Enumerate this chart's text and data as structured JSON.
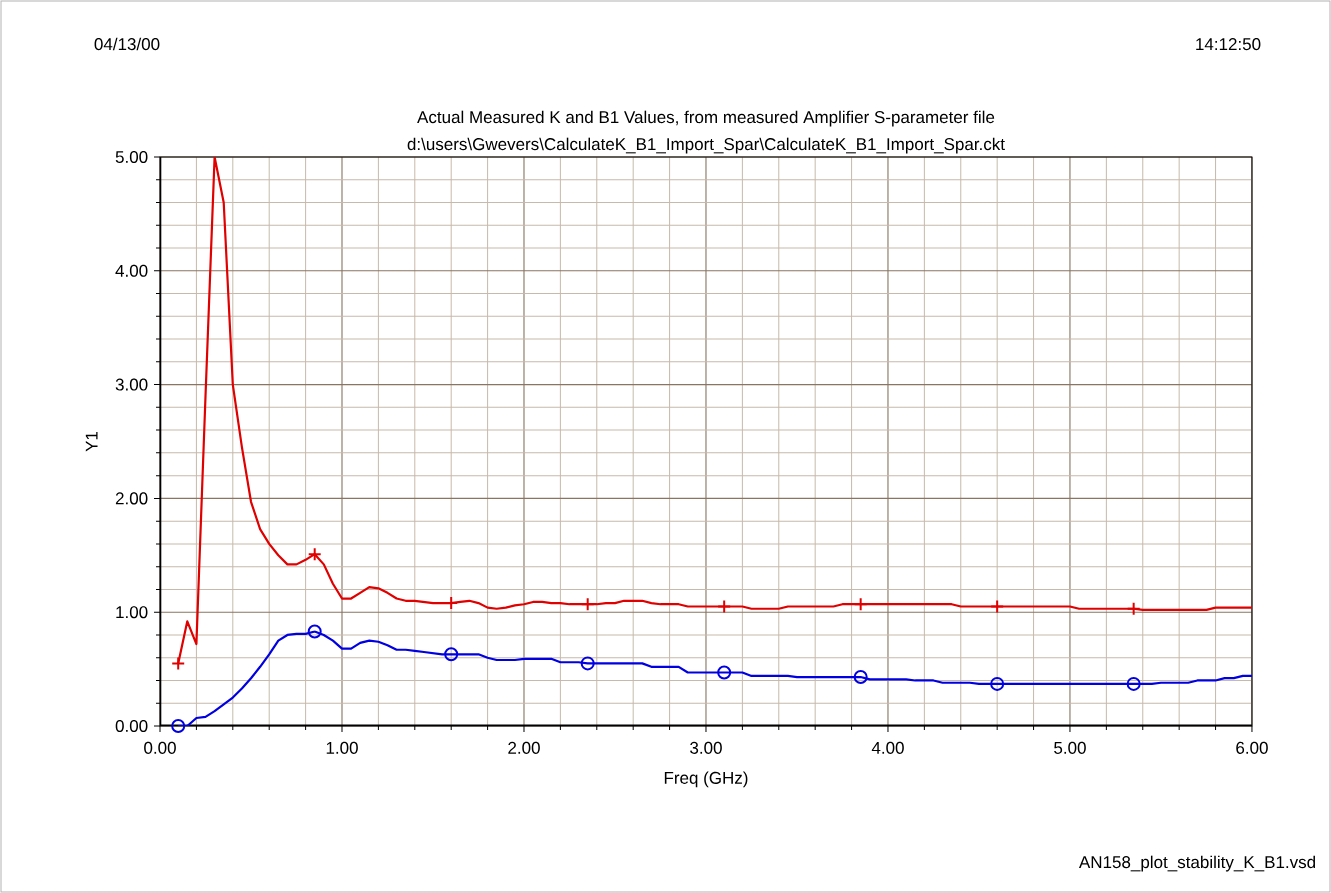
{
  "chart_data": {
    "type": "line",
    "title": "Actual Measured K and B1 Values, from measured Amplifier S-parameter file",
    "subtitle": "d:\\users\\Gwevers\\CalculateK_B1_Import_Spar\\CalculateK_B1_Import_Spar.ckt",
    "xlabel": "Freq (GHz)",
    "ylabel": "Y1",
    "annotations": [
      "04/13/00",
      "14:12:50",
      "AN158_plot_stability_K_B1.vsd"
    ],
    "x": [
      0.1,
      0.15,
      0.2,
      0.25,
      0.3,
      0.35,
      0.4,
      0.45,
      0.5,
      0.55,
      0.6,
      0.65,
      0.7,
      0.75,
      0.8,
      0.85,
      0.9,
      0.95,
      1.0,
      1.05,
      1.1,
      1.15,
      1.2,
      1.25,
      1.3,
      1.35,
      1.4,
      1.45,
      1.5,
      1.55,
      1.6,
      1.65,
      1.7,
      1.75,
      1.8,
      1.85,
      1.9,
      1.95,
      2.0,
      2.05,
      2.1,
      2.15,
      2.2,
      2.25,
      2.3,
      2.35,
      2.4,
      2.45,
      2.5,
      2.55,
      2.6,
      2.65,
      2.7,
      2.75,
      2.8,
      2.85,
      2.9,
      2.95,
      3.0,
      3.05,
      3.1,
      3.15,
      3.2,
      3.25,
      3.3,
      3.35,
      3.4,
      3.45,
      3.5,
      3.55,
      3.6,
      3.65,
      3.7,
      3.75,
      3.8,
      3.85,
      3.9,
      3.95,
      4.0,
      4.05,
      4.1,
      4.15,
      4.2,
      4.25,
      4.3,
      4.35,
      4.4,
      4.45,
      4.5,
      4.55,
      4.6,
      4.65,
      4.7,
      4.75,
      4.8,
      4.85,
      4.9,
      4.95,
      5.0,
      5.05,
      5.1,
      5.15,
      5.2,
      5.25,
      5.3,
      5.35,
      5.4,
      5.45,
      5.5,
      5.55,
      5.6,
      5.65,
      5.7,
      5.75,
      5.8,
      5.85,
      5.9,
      5.95,
      6.0
    ],
    "series": [
      {
        "color": "#e00000",
        "values": [
          0.55,
          0.92,
          0.72,
          2.9,
          5.0,
          4.6,
          3.0,
          2.45,
          1.97,
          1.73,
          1.6,
          1.5,
          1.42,
          1.42,
          1.46,
          1.51,
          1.42,
          1.25,
          1.12,
          1.12,
          1.17,
          1.22,
          1.21,
          1.17,
          1.12,
          1.1,
          1.1,
          1.09,
          1.08,
          1.08,
          1.08,
          1.09,
          1.1,
          1.08,
          1.04,
          1.03,
          1.04,
          1.06,
          1.07,
          1.09,
          1.09,
          1.08,
          1.08,
          1.07,
          1.07,
          1.07,
          1.07,
          1.08,
          1.08,
          1.1,
          1.1,
          1.1,
          1.08,
          1.07,
          1.07,
          1.07,
          1.05,
          1.05,
          1.05,
          1.05,
          1.05,
          1.05,
          1.05,
          1.03,
          1.03,
          1.03,
          1.03,
          1.05,
          1.05,
          1.05,
          1.05,
          1.05,
          1.05,
          1.07,
          1.07,
          1.07,
          1.07,
          1.07,
          1.07,
          1.07,
          1.07,
          1.07,
          1.07,
          1.07,
          1.07,
          1.07,
          1.05,
          1.05,
          1.05,
          1.05,
          1.05,
          1.05,
          1.05,
          1.05,
          1.05,
          1.05,
          1.05,
          1.05,
          1.05,
          1.03,
          1.03,
          1.03,
          1.03,
          1.03,
          1.03,
          1.03,
          1.02,
          1.02,
          1.02,
          1.02,
          1.02,
          1.02,
          1.02,
          1.02,
          1.04,
          1.04,
          1.04,
          1.04,
          1.04
        ]
      },
      {
        "color": "#0000e0",
        "values": [
          0.0,
          0.0,
          0.07,
          0.08,
          0.13,
          0.19,
          0.25,
          0.33,
          0.42,
          0.52,
          0.63,
          0.75,
          0.8,
          0.81,
          0.81,
          0.83,
          0.8,
          0.75,
          0.68,
          0.68,
          0.73,
          0.75,
          0.74,
          0.71,
          0.67,
          0.67,
          0.66,
          0.65,
          0.64,
          0.63,
          0.63,
          0.63,
          0.63,
          0.63,
          0.6,
          0.58,
          0.58,
          0.58,
          0.59,
          0.59,
          0.59,
          0.59,
          0.56,
          0.56,
          0.56,
          0.55,
          0.55,
          0.55,
          0.55,
          0.55,
          0.55,
          0.55,
          0.52,
          0.52,
          0.52,
          0.52,
          0.47,
          0.47,
          0.47,
          0.47,
          0.47,
          0.47,
          0.47,
          0.44,
          0.44,
          0.44,
          0.44,
          0.44,
          0.43,
          0.43,
          0.43,
          0.43,
          0.43,
          0.43,
          0.43,
          0.43,
          0.41,
          0.41,
          0.41,
          0.41,
          0.41,
          0.4,
          0.4,
          0.4,
          0.38,
          0.38,
          0.38,
          0.38,
          0.37,
          0.37,
          0.37,
          0.37,
          0.37,
          0.37,
          0.37,
          0.37,
          0.37,
          0.37,
          0.37,
          0.37,
          0.37,
          0.37,
          0.37,
          0.37,
          0.37,
          0.37,
          0.37,
          0.37,
          0.38,
          0.38,
          0.38,
          0.38,
          0.4,
          0.4,
          0.4,
          0.42,
          0.42,
          0.44,
          0.44
        ]
      },
      {
        "type": "scatter",
        "color": "#e00000",
        "marker": "cross",
        "x": [
          0.1,
          0.85,
          1.6,
          2.35,
          3.1,
          3.85,
          4.6,
          5.35
        ],
        "values": [
          0.55,
          1.51,
          1.08,
          1.07,
          1.05,
          1.07,
          1.05,
          1.03
        ]
      },
      {
        "type": "scatter",
        "color": "#0000e0",
        "marker": "circle",
        "x": [
          0.1,
          0.85,
          1.6,
          2.35,
          3.1,
          3.85,
          4.6,
          5.35
        ],
        "values": [
          0.0,
          0.83,
          0.63,
          0.55,
          0.47,
          0.43,
          0.37,
          0.37
        ]
      }
    ],
    "xlim": [
      0,
      6
    ],
    "ylim": [
      0,
      5
    ],
    "xticks": [
      {
        "value": 0,
        "label": "0.00"
      },
      {
        "value": 1,
        "label": "1.00"
      },
      {
        "value": 2,
        "label": "2.00"
      },
      {
        "value": 3,
        "label": "3.00"
      },
      {
        "value": 4,
        "label": "4.00"
      },
      {
        "value": 5,
        "label": "5.00"
      },
      {
        "value": 6,
        "label": "6.00"
      }
    ],
    "yticks": [
      {
        "value": 0,
        "label": "0.00"
      },
      {
        "value": 1,
        "label": "1.00"
      },
      {
        "value": 2,
        "label": "2.00"
      },
      {
        "value": 3,
        "label": "3.00"
      },
      {
        "value": 4,
        "label": "4.00"
      },
      {
        "value": 5,
        "label": "5.00"
      }
    ],
    "grid": true,
    "line_style": "solid"
  }
}
